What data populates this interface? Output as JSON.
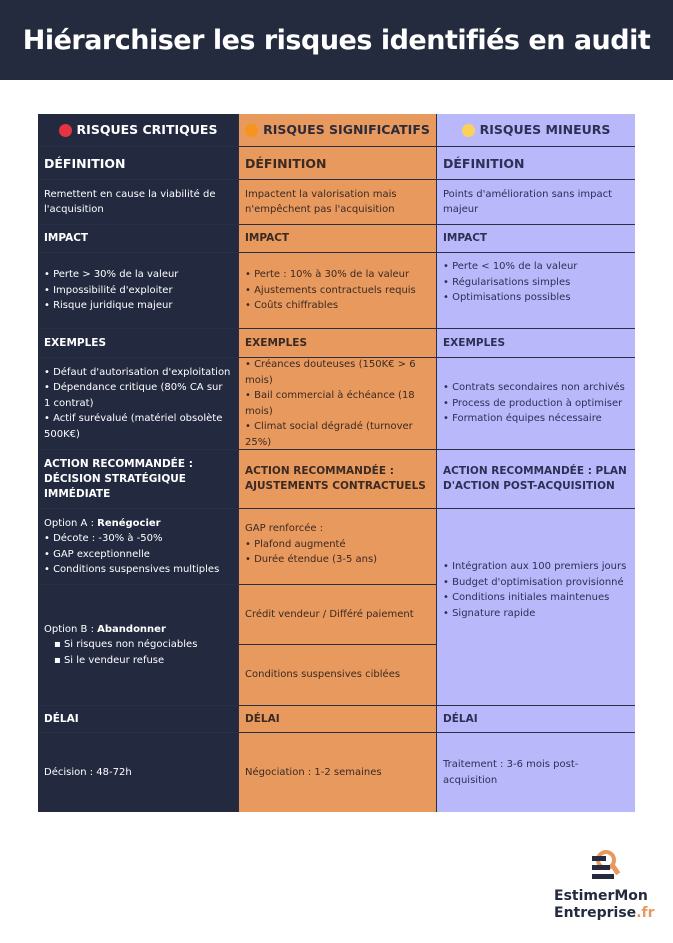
{
  "title": "Hiérarchiser les risques identifiés en audit",
  "colors": {
    "critical": "#232a40",
    "significant": "#e8995e",
    "minor": "#b9b8fb",
    "dot_critical": "#e5333f",
    "dot_significant": "#f7941d",
    "dot_minor": "#fcd15a"
  },
  "columns": [
    {
      "header": "RISQUES CRITIQUES",
      "definition_label": "DÉFINITION",
      "definition": "Remettent en cause la viabilité de l'acquisition",
      "impact_label": "IMPACT",
      "impact": [
        "• Perte > 30% de la valeur",
        "• Impossibilité d'exploiter",
        "• Risque juridique majeur"
      ],
      "examples_label": "EXEMPLES",
      "examples": [
        "• Défaut d'autorisation d'exploitation",
        "• Dépendance critique (80% CA sur 1 contrat)",
        "• Actif surévalué (matériel obsolète 500K€)"
      ],
      "action_label": "ACTION RECOMMANDÉE : DÉCISION STRATÉGIQUE IMMÉDIATE",
      "optionA_prefix": "Option A : ",
      "optionA_bold": "Renégocier",
      "optionA_items": [
        "• Décote : -30% à -50%",
        "• GAP exceptionnelle",
        "• Conditions suspensives multiples"
      ],
      "optionB_prefix": "Option B : ",
      "optionB_bold": "Abandonner",
      "optionB_items": [
        "▪  Si risques non négociables",
        "▪  Si le vendeur refuse"
      ],
      "delay_label": "DÉLAI",
      "delay": "Décision : 48-72h"
    },
    {
      "header": "RISQUES SIGNIFICATIFS",
      "definition_label": "DÉFINITION",
      "definition": "Impactent la valorisation mais n'empêchent pas l'acquisition",
      "impact_label": "IMPACT",
      "impact": [
        "• Perte : 10% à 30% de la valeur",
        "• Ajustements contractuels requis",
        "• Coûts chiffrables"
      ],
      "examples_label": "EXEMPLES",
      "examples": [
        "• Créances douteuses (150K€ > 6 mois)",
        "• Bail commercial à échéance (18 mois)",
        "• Climat social dégradé (turnover 25%)"
      ],
      "action_label": "ACTION RECOMMANDÉE : AJUSTEMENTS CONTRACTUELS",
      "action_items_1": [
        "GAP renforcée :",
        "• Plafond augmenté",
        "• Durée étendue (3-5 ans)"
      ],
      "action_item_2": "Crédit vendeur / Différé paiement",
      "action_item_3": "Conditions suspensives ciblées",
      "delay_label": "DÉLAI",
      "delay": "Négociation : 1-2 semaines"
    },
    {
      "header": "RISQUES MINEURS",
      "definition_label": "DÉFINITION",
      "definition": "Points d'amélioration sans impact majeur",
      "impact_label": "IMPACT",
      "impact": [
        "• Perte < 10% de la valeur",
        "• Régularisations simples",
        "• Optimisations possibles"
      ],
      "examples_label": "EXEMPLES",
      "examples": [
        "• Contrats secondaires non archivés",
        "• Process de production à optimiser",
        "• Formation équipes nécessaire"
      ],
      "action_label": "ACTION RECOMMANDÉE : PLAN D'ACTION POST-ACQUISITION",
      "action_items": [
        "• Intégration aux 100 premiers jours",
        "• Budget d'optimisation provisionné",
        "• Conditions initiales maintenues",
        "• Signature rapide"
      ],
      "delay_label": "DÉLAI",
      "delay": "Traitement : 3-6 mois post-acquisition"
    }
  ],
  "logo": {
    "line1": "EstimerMon",
    "line2": "Entreprise",
    "tld": ".fr"
  }
}
